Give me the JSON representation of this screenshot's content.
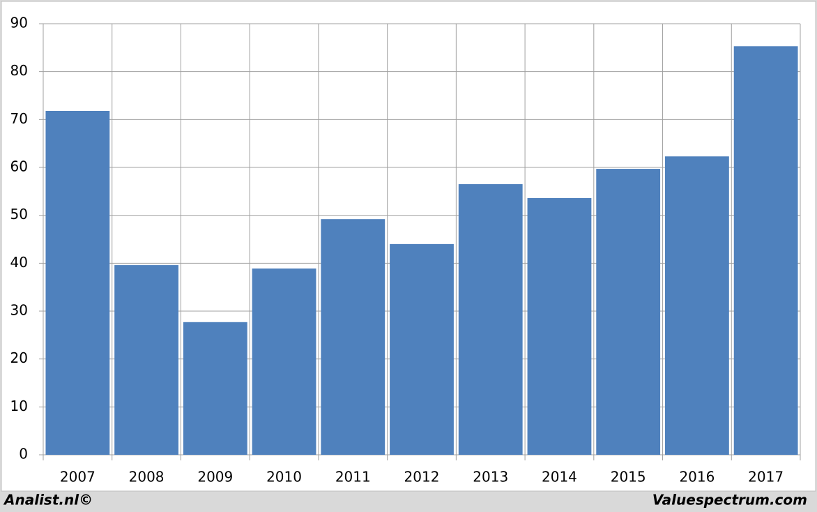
{
  "chart_data": {
    "type": "bar",
    "categories": [
      "2007",
      "2008",
      "2009",
      "2010",
      "2011",
      "2012",
      "2013",
      "2014",
      "2015",
      "2016",
      "2017"
    ],
    "values": [
      71.8,
      39.6,
      27.7,
      38.9,
      49.2,
      44.0,
      56.5,
      53.6,
      59.7,
      62.3,
      85.3
    ],
    "color": "#4f81bd",
    "ylim": [
      0,
      90
    ],
    "yticks": [
      0,
      10,
      20,
      30,
      40,
      50,
      60,
      70,
      80,
      90
    ],
    "grid": true,
    "footer_left": "Analist.nl©",
    "footer_right": "Valuespectrum.com"
  }
}
